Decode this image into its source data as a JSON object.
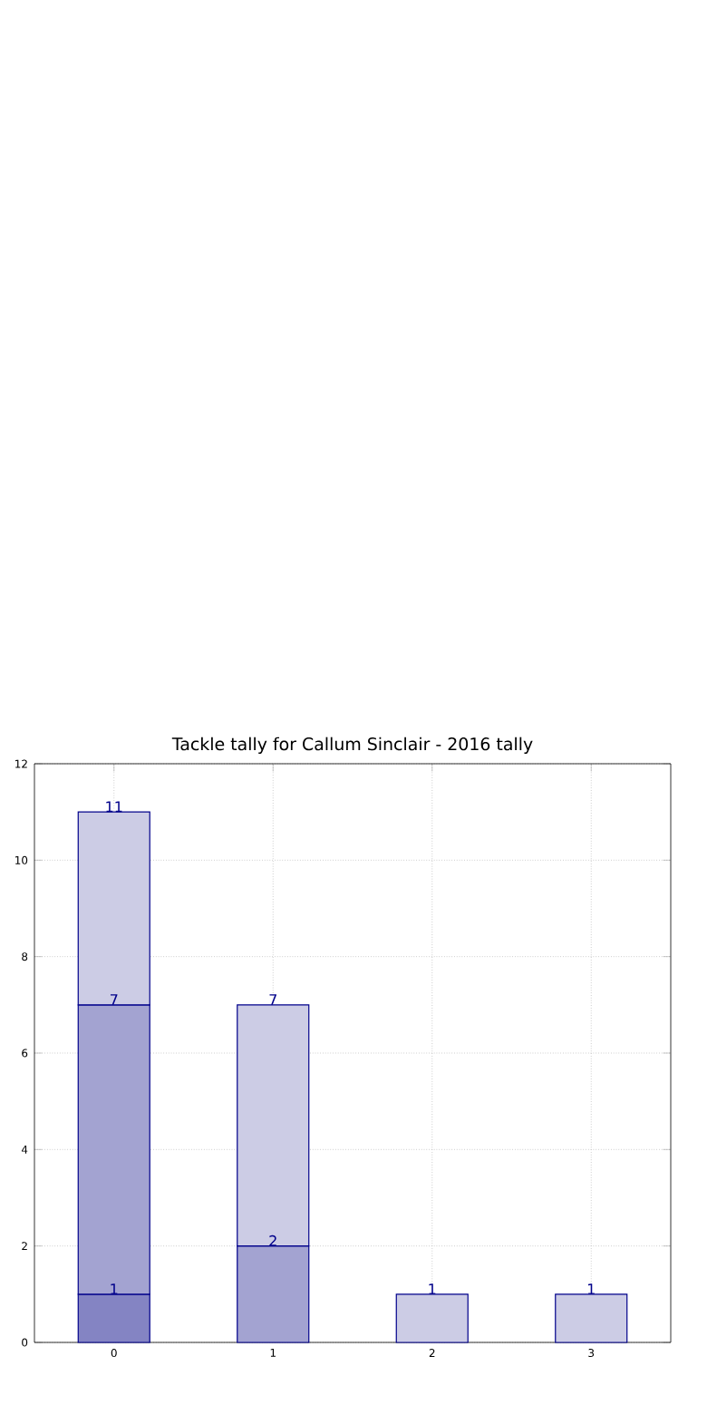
{
  "chart_data": {
    "type": "bar",
    "title": "Tackle tally for Callum Sinclair - 2016 tally",
    "categories": [
      "0",
      "1",
      "2",
      "3"
    ],
    "stacked": true,
    "series": [
      {
        "color": "#8484c3",
        "values": [
          1,
          null,
          null,
          null
        ]
      },
      {
        "color": "#a3a3d1",
        "values": [
          6,
          2,
          null,
          null
        ]
      },
      {
        "color": "#ccccE5",
        "values": [
          4,
          5,
          1,
          1
        ]
      }
    ],
    "totals": [
      "11",
      "7",
      "1",
      "1"
    ],
    "annotations": [
      {
        "text": "1",
        "x": "0",
        "y": 1
      },
      {
        "text": "7",
        "x": "0",
        "y": 7
      },
      {
        "text": "2",
        "x": "1",
        "y": 2
      }
    ],
    "ylim": [
      0,
      12
    ],
    "yticks": [
      0,
      2,
      4,
      6,
      8,
      10,
      12
    ],
    "grid": true
  }
}
